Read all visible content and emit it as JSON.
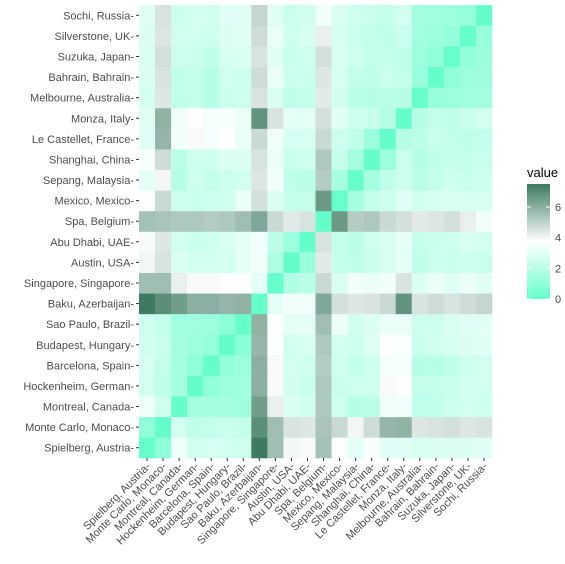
{
  "chart_data": {
    "type": "heatmap",
    "title": "",
    "xlabel": "",
    "ylabel": "",
    "labels": [
      "Spielberg, Austria-",
      "Monte Carlo, Monaco-",
      "Montreal, Canada-",
      "Hockenheim, German-",
      "Barcelona, Spain-",
      "Budapest, Hungary-",
      "Sao Paulo, Brazil-",
      "Baku, Azerbaijan-",
      "Singapore, Singapore-",
      "Austin, USA-",
      "Abu Dhabi, UAE-",
      "Spa, Belgium-",
      "Mexico, Mexico-",
      "Sepang, Malaysia-",
      "Shanghai, China-",
      "Le Castellet, France-",
      "Monza, Italy-",
      "Melbourne, Australia-",
      "Bahrain, Bahrain-",
      "Suzuka, Japan-",
      "Silverstone, UK-",
      "Sochi, Russia-"
    ],
    "matrix": [
      [
        0.0,
        1.0,
        3.3,
        2.6,
        2.7,
        2.6,
        2.5,
        7.5,
        5.6,
        4.0,
        3.9,
        5.5,
        3.8,
        3.1,
        3.6,
        3.0,
        3.0,
        2.7,
        2.8,
        2.8,
        2.9,
        3.0
      ],
      [
        1.0,
        0.0,
        2.6,
        2.2,
        2.3,
        2.4,
        2.3,
        6.9,
        5.6,
        4.5,
        4.4,
        5.4,
        4.8,
        4.0,
        4.7,
        5.8,
        5.9,
        4.4,
        4.5,
        4.6,
        4.4,
        4.5
      ],
      [
        3.3,
        2.6,
        0.0,
        1.5,
        1.5,
        1.5,
        1.4,
        6.5,
        4.2,
        2.8,
        2.6,
        5.3,
        2.5,
        2.0,
        2.1,
        3.4,
        3.4,
        2.2,
        2.2,
        2.5,
        2.6,
        2.5
      ],
      [
        2.6,
        2.2,
        1.5,
        0.0,
        1.0,
        1.3,
        1.4,
        6.0,
        3.9,
        2.6,
        2.4,
        5.3,
        2.4,
        2.5,
        2.5,
        3.9,
        3.8,
        2.3,
        2.3,
        2.4,
        2.6,
        2.6
      ],
      [
        2.7,
        2.3,
        1.5,
        1.0,
        0.0,
        1.1,
        1.3,
        6.0,
        3.9,
        2.6,
        2.5,
        5.2,
        2.5,
        2.3,
        2.5,
        3.5,
        3.5,
        2.0,
        2.0,
        2.2,
        2.5,
        2.6
      ],
      [
        2.6,
        2.4,
        1.5,
        1.3,
        1.1,
        0.0,
        0.9,
        5.8,
        3.8,
        2.6,
        2.7,
        5.3,
        2.6,
        2.5,
        2.9,
        3.7,
        3.6,
        2.4,
        2.6,
        2.7,
        2.9,
        3.0
      ],
      [
        2.5,
        2.3,
        1.4,
        1.4,
        1.3,
        0.9,
        0.0,
        5.9,
        3.8,
        3.1,
        3.1,
        5.6,
        3.3,
        2.6,
        2.9,
        3.2,
        3.2,
        2.5,
        2.5,
        2.8,
        3.0,
        3.0
      ],
      [
        7.5,
        6.9,
        6.5,
        6.0,
        6.0,
        5.8,
        5.9,
        0.0,
        3.1,
        3.4,
        3.4,
        6.2,
        4.6,
        4.4,
        4.5,
        4.8,
        6.8,
        4.5,
        4.7,
        4.5,
        4.7,
        4.9
      ],
      [
        5.6,
        5.6,
        4.2,
        3.9,
        3.9,
        3.8,
        3.8,
        3.1,
        0.0,
        1.8,
        2.1,
        4.8,
        2.8,
        3.4,
        3.2,
        3.4,
        4.5,
        2.9,
        3.2,
        3.0,
        3.2,
        3.0
      ],
      [
        4.0,
        4.5,
        2.8,
        2.6,
        2.6,
        2.6,
        3.1,
        3.4,
        1.8,
        0.0,
        1.3,
        4.3,
        2.3,
        2.2,
        2.4,
        2.7,
        3.1,
        2.2,
        2.4,
        2.4,
        2.5,
        2.4
      ],
      [
        3.9,
        4.4,
        2.6,
        2.4,
        2.5,
        2.7,
        3.1,
        3.4,
        2.1,
        1.3,
        0.0,
        4.5,
        2.3,
        2.1,
        2.5,
        2.7,
        3.1,
        2.3,
        2.4,
        2.5,
        2.7,
        2.6
      ],
      [
        5.5,
        5.4,
        5.3,
        5.3,
        5.2,
        5.3,
        5.6,
        6.2,
        4.8,
        4.3,
        4.5,
        0.0,
        6.6,
        5.2,
        5.3,
        4.8,
        4.6,
        4.3,
        4.4,
        4.6,
        4.2,
        3.4
      ],
      [
        3.8,
        4.8,
        2.5,
        2.4,
        2.5,
        2.6,
        3.3,
        4.6,
        2.8,
        2.3,
        2.3,
        6.6,
        0.0,
        1.6,
        2.3,
        2.5,
        3.0,
        2.6,
        2.7,
        2.8,
        2.7,
        2.8
      ],
      [
        3.1,
        4.0,
        2.0,
        2.5,
        2.3,
        2.5,
        2.6,
        4.4,
        3.4,
        2.2,
        2.1,
        5.2,
        1.6,
        0.0,
        1.5,
        2.2,
        2.5,
        2.1,
        2.3,
        2.5,
        2.4,
        2.5
      ],
      [
        3.6,
        4.7,
        2.1,
        2.5,
        2.5,
        2.9,
        2.9,
        4.5,
        3.2,
        2.4,
        2.5,
        5.3,
        2.3,
        1.5,
        0.0,
        1.3,
        2.4,
        2.0,
        2.2,
        2.3,
        2.3,
        2.4
      ],
      [
        3.0,
        5.8,
        3.4,
        3.9,
        3.5,
        3.7,
        3.2,
        4.8,
        3.4,
        2.7,
        2.7,
        4.8,
        2.5,
        2.2,
        1.3,
        0.0,
        1.9,
        2.1,
        2.4,
        2.3,
        2.2,
        2.3
      ],
      [
        3.0,
        5.9,
        3.4,
        3.8,
        3.5,
        3.6,
        3.2,
        6.8,
        4.5,
        3.1,
        3.1,
        4.6,
        3.0,
        2.5,
        2.4,
        1.9,
        0.0,
        2.0,
        2.3,
        2.2,
        2.4,
        2.6
      ],
      [
        2.7,
        4.4,
        2.2,
        2.3,
        2.0,
        2.4,
        2.5,
        4.5,
        2.9,
        2.2,
        2.3,
        4.3,
        2.6,
        2.1,
        2.0,
        2.1,
        2.0,
        0.0,
        1.2,
        1.3,
        1.4,
        1.5
      ],
      [
        2.8,
        4.5,
        2.2,
        2.3,
        2.0,
        2.6,
        2.5,
        4.7,
        3.2,
        2.4,
        2.4,
        4.4,
        2.7,
        2.3,
        2.2,
        2.4,
        2.3,
        1.2,
        0.0,
        1.0,
        1.3,
        1.4
      ],
      [
        2.8,
        4.6,
        2.5,
        2.4,
        2.2,
        2.7,
        2.8,
        4.5,
        3.0,
        2.4,
        2.5,
        4.6,
        2.8,
        2.5,
        2.3,
        2.3,
        2.2,
        1.3,
        1.0,
        0.0,
        1.1,
        1.3
      ],
      [
        2.9,
        4.4,
        2.6,
        2.6,
        2.5,
        2.9,
        3.0,
        4.7,
        3.2,
        2.5,
        2.7,
        4.2,
        2.7,
        2.4,
        2.3,
        2.2,
        2.4,
        1.4,
        1.3,
        1.1,
        0.0,
        1.2
      ],
      [
        3.0,
        4.5,
        2.5,
        2.6,
        2.6,
        3.0,
        3.0,
        4.9,
        3.0,
        2.4,
        2.6,
        3.4,
        2.8,
        2.5,
        2.4,
        2.3,
        2.6,
        1.5,
        1.4,
        1.3,
        1.2,
        0.0
      ]
    ],
    "colorscale": {
      "low": "#66FFCC",
      "mid": "#FFFFFF",
      "high": "#3D7A61",
      "midpoint": 3.75,
      "range": [
        0,
        7.5
      ]
    },
    "grid": false,
    "legend_position": "right",
    "legend": {
      "title": "value",
      "breaks": [
        0,
        2,
        4,
        6
      ],
      "break_labels": [
        "0",
        "2",
        "4",
        "6"
      ]
    }
  }
}
